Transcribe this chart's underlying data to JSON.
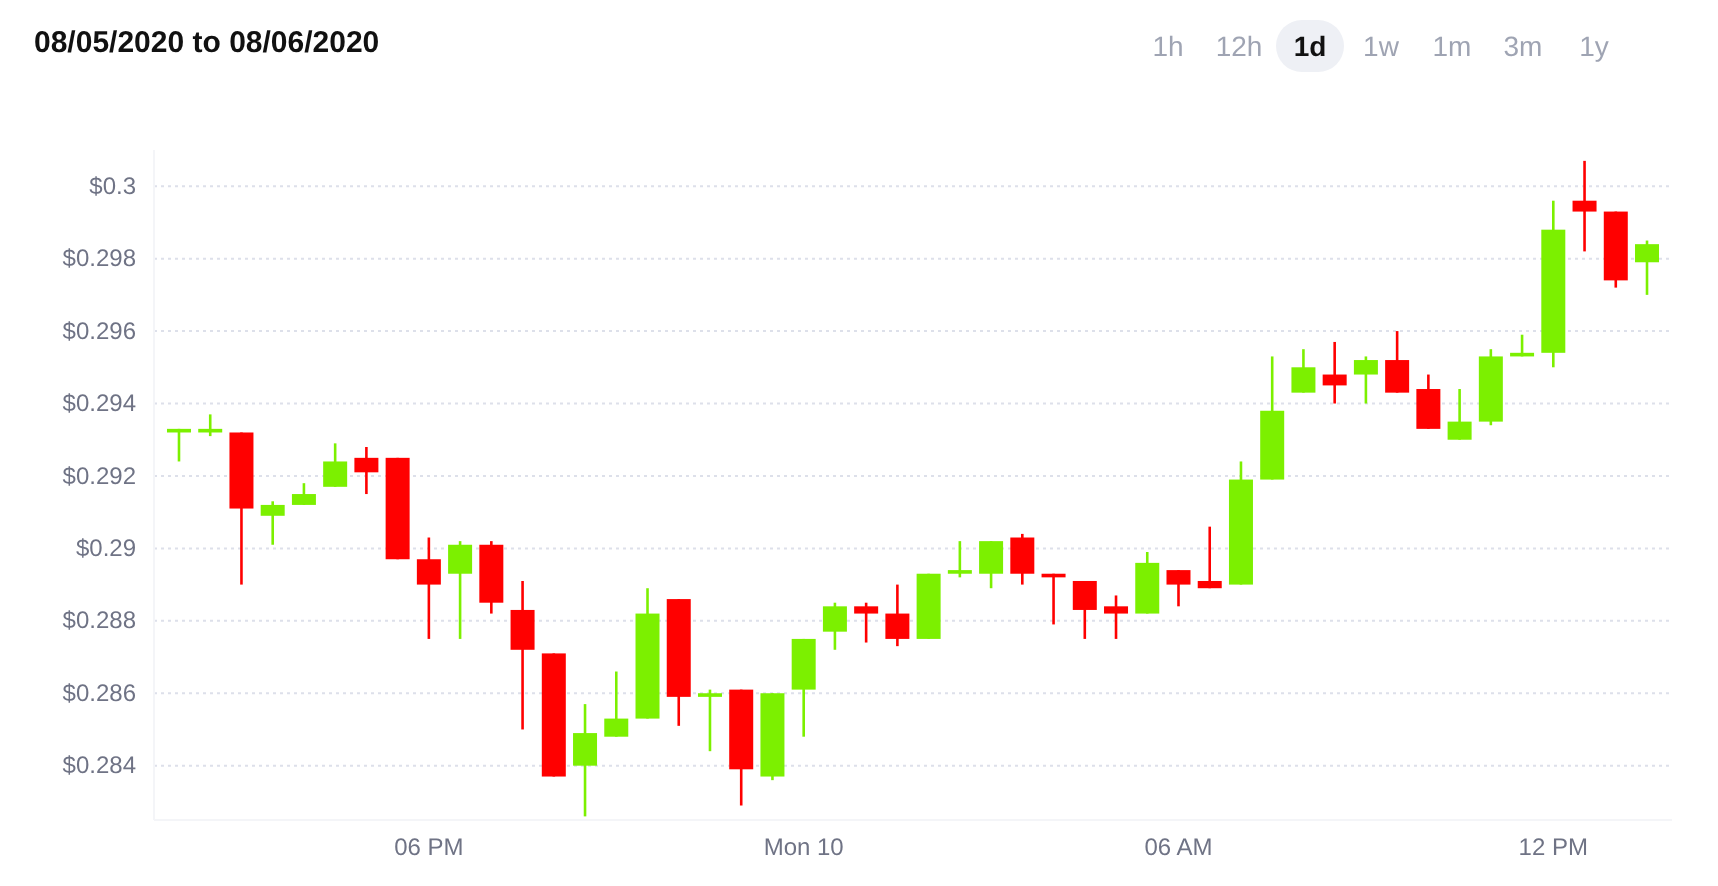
{
  "chart_data": {
    "type": "candlestick",
    "title": "08/05/2020 to 08/06/2020",
    "annotations": [
      "1h",
      "12h",
      "1d",
      "1w",
      "1m",
      "3m",
      "1y"
    ],
    "x": [
      "2020-08-09T14:00",
      "2020-08-09T14:30",
      "2020-08-09T15:00",
      "2020-08-09T15:30",
      "2020-08-09T16:00",
      "2020-08-09T16:30",
      "2020-08-09T17:00",
      "2020-08-09T17:30",
      "2020-08-09T18:00",
      "2020-08-09T18:30",
      "2020-08-09T19:00",
      "2020-08-09T19:30",
      "2020-08-09T20:00",
      "2020-08-09T20:30",
      "2020-08-09T21:00",
      "2020-08-09T21:30",
      "2020-08-09T22:00",
      "2020-08-09T22:30",
      "2020-08-09T23:00",
      "2020-08-09T23:30",
      "2020-08-10T00:00",
      "2020-08-10T00:30",
      "2020-08-10T01:00",
      "2020-08-10T01:30",
      "2020-08-10T02:00",
      "2020-08-10T02:30",
      "2020-08-10T03:00",
      "2020-08-10T03:30",
      "2020-08-10T04:00",
      "2020-08-10T04:30",
      "2020-08-10T05:00",
      "2020-08-10T05:30",
      "2020-08-10T06:00",
      "2020-08-10T06:30",
      "2020-08-10T07:00",
      "2020-08-10T07:30",
      "2020-08-10T08:00",
      "2020-08-10T08:30",
      "2020-08-10T09:00",
      "2020-08-10T09:30",
      "2020-08-10T10:00",
      "2020-08-10T10:30",
      "2020-08-10T11:00",
      "2020-08-10T11:30",
      "2020-08-10T12:00",
      "2020-08-10T12:30",
      "2020-08-10T13:00",
      "2020-08-10T13:30"
    ],
    "ohlc": [
      [
        0.2932,
        0.2933,
        0.2924,
        0.2933
      ],
      [
        0.2932,
        0.2937,
        0.2931,
        0.2933
      ],
      [
        0.2932,
        0.2932,
        0.289,
        0.2911
      ],
      [
        0.2909,
        0.2913,
        0.2901,
        0.2912
      ],
      [
        0.2912,
        0.2918,
        0.2912,
        0.2915
      ],
      [
        0.2917,
        0.2929,
        0.2917,
        0.2924
      ],
      [
        0.2925,
        0.2928,
        0.2915,
        0.2921
      ],
      [
        0.2925,
        0.2925,
        0.2897,
        0.2897
      ],
      [
        0.2897,
        0.2903,
        0.2875,
        0.289
      ],
      [
        0.2893,
        0.2902,
        0.2875,
        0.2901
      ],
      [
        0.2901,
        0.2902,
        0.2882,
        0.2885
      ],
      [
        0.2883,
        0.2891,
        0.285,
        0.2872
      ],
      [
        0.2871,
        0.2871,
        0.2837,
        0.2837
      ],
      [
        0.284,
        0.2857,
        0.2826,
        0.2849
      ],
      [
        0.2848,
        0.2866,
        0.2848,
        0.2853
      ],
      [
        0.2853,
        0.2889,
        0.2853,
        0.2882
      ],
      [
        0.2886,
        0.2886,
        0.2851,
        0.2859
      ],
      [
        0.2859,
        0.2861,
        0.2844,
        0.286
      ],
      [
        0.2861,
        0.2861,
        0.2829,
        0.2839
      ],
      [
        0.2837,
        0.286,
        0.2836,
        0.286
      ],
      [
        0.2861,
        0.2875,
        0.2848,
        0.2875
      ],
      [
        0.2877,
        0.2885,
        0.2872,
        0.2884
      ],
      [
        0.2884,
        0.2885,
        0.2874,
        0.2882
      ],
      [
        0.2882,
        0.289,
        0.2873,
        0.2875
      ],
      [
        0.2875,
        0.2893,
        0.2875,
        0.2893
      ],
      [
        0.2893,
        0.2902,
        0.2892,
        0.2894
      ],
      [
        0.2893,
        0.2902,
        0.2889,
        0.2902
      ],
      [
        0.2903,
        0.2904,
        0.289,
        0.2893
      ],
      [
        0.2893,
        0.2893,
        0.2879,
        0.2892
      ],
      [
        0.2891,
        0.2891,
        0.2875,
        0.2883
      ],
      [
        0.2884,
        0.2887,
        0.2875,
        0.2882
      ],
      [
        0.2882,
        0.2899,
        0.2882,
        0.2896
      ],
      [
        0.2894,
        0.2894,
        0.2884,
        0.289
      ],
      [
        0.2891,
        0.2906,
        0.2889,
        0.2889
      ],
      [
        0.289,
        0.2924,
        0.289,
        0.2919
      ],
      [
        0.2919,
        0.2953,
        0.2919,
        0.2938
      ],
      [
        0.2943,
        0.2955,
        0.2943,
        0.295
      ],
      [
        0.2948,
        0.2957,
        0.294,
        0.2945
      ],
      [
        0.2948,
        0.2953,
        0.294,
        0.2952
      ],
      [
        0.2952,
        0.296,
        0.2943,
        0.2943
      ],
      [
        0.2944,
        0.2948,
        0.2933,
        0.2933
      ],
      [
        0.293,
        0.2944,
        0.293,
        0.2935
      ],
      [
        0.2935,
        0.2955,
        0.2934,
        0.2953
      ],
      [
        0.2953,
        0.2959,
        0.2953,
        0.2954
      ],
      [
        0.2954,
        0.2996,
        0.295,
        0.2988
      ],
      [
        0.2996,
        0.3007,
        0.2982,
        0.2993
      ],
      [
        0.2993,
        0.2993,
        0.2972,
        0.2974
      ],
      [
        0.2979,
        0.2985,
        0.297,
        0.2984
      ]
    ],
    "colors": [
      "#7cf000",
      "#7cf000",
      "#ff0000",
      "#7cf000",
      "#7cf000",
      "#7cf000",
      "#ff0000",
      "#ff0000",
      "#ff0000",
      "#7cf000",
      "#ff0000",
      "#ff0000",
      "#ff0000",
      "#7cf000",
      "#7cf000",
      "#7cf000",
      "#ff0000",
      "#7cf000",
      "#ff0000",
      "#7cf000",
      "#7cf000",
      "#7cf000",
      "#ff0000",
      "#ff0000",
      "#7cf000",
      "#7cf000",
      "#7cf000",
      "#ff0000",
      "#ff0000",
      "#ff0000",
      "#ff0000",
      "#7cf000",
      "#ff0000",
      "#ff0000",
      "#7cf000",
      "#7cf000",
      "#7cf000",
      "#ff0000",
      "#7cf000",
      "#ff0000",
      "#ff0000",
      "#7cf000",
      "#7cf000",
      "#7cf000",
      "#7cf000",
      "#ff0000",
      "#ff0000",
      "#7cf000"
    ],
    "xlim": [
      "2020-08-09T13:36",
      "2020-08-10T13:54"
    ],
    "xticks": [
      {
        "value": "2020-08-09T18:00",
        "label": "06 PM"
      },
      {
        "value": "2020-08-10T00:00",
        "label": "Mon 10"
      },
      {
        "value": "2020-08-10T06:00",
        "label": "06 AM"
      },
      {
        "value": "2020-08-10T12:00",
        "label": "12 PM"
      }
    ],
    "ylim": [
      0.2825,
      0.301
    ],
    "yticks": [
      {
        "value": 0.284,
        "label": "$0.284"
      },
      {
        "value": 0.286,
        "label": "$0.286"
      },
      {
        "value": 0.288,
        "label": "$0.288"
      },
      {
        "value": 0.29,
        "label": "$0.29"
      },
      {
        "value": 0.292,
        "label": "$0.292"
      },
      {
        "value": 0.294,
        "label": "$0.294"
      },
      {
        "value": 0.296,
        "label": "$0.296"
      },
      {
        "value": 0.298,
        "label": "$0.298"
      },
      {
        "value": 0.3,
        "label": "$0.3"
      }
    ],
    "grid": "y"
  }
}
